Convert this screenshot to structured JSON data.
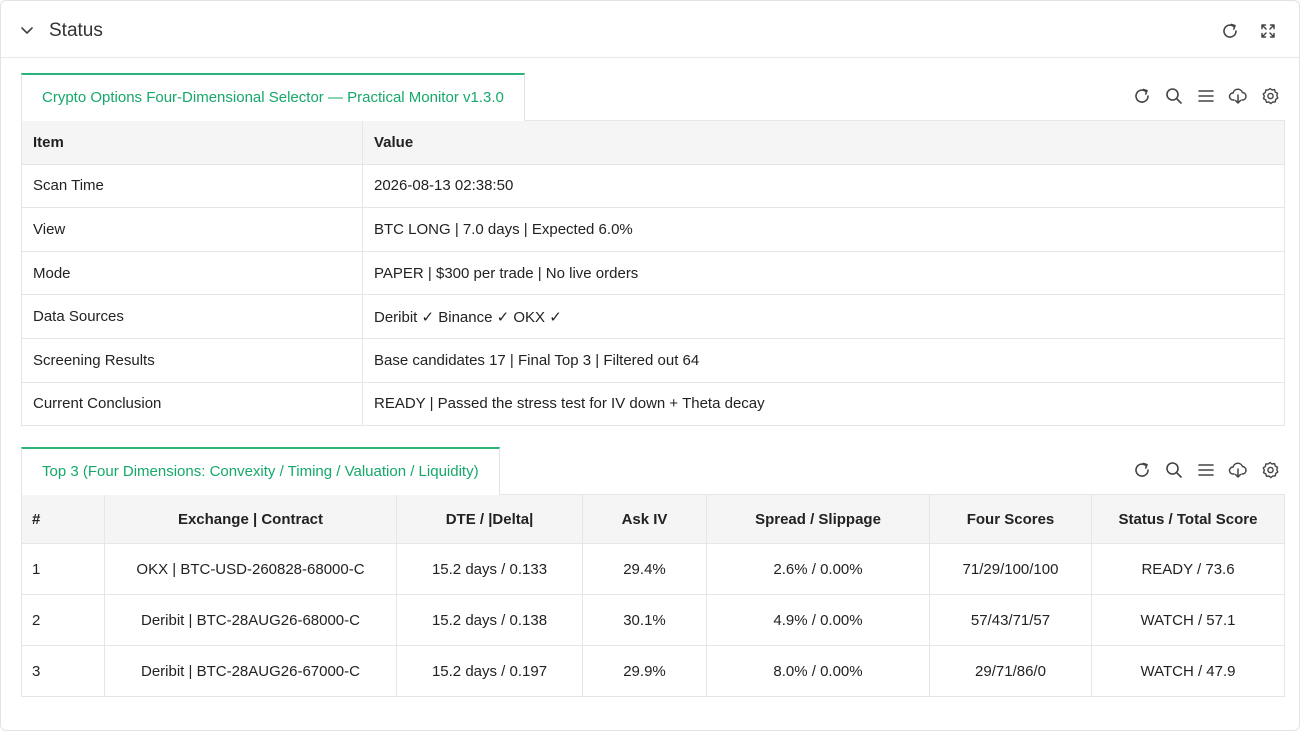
{
  "header": {
    "title": "Status",
    "icons": [
      "chevron-down-icon",
      "refresh-icon",
      "fullscreen-icon"
    ]
  },
  "panel1": {
    "tab_label": "Crypto Options Four-Dimensional Selector — Practical Monitor v1.3.0",
    "columns": [
      "Item",
      "Value"
    ],
    "rows": [
      {
        "item": "Scan Time",
        "value": "2026-08-13 02:38:50"
      },
      {
        "item": "View",
        "value": "BTC LONG  |  7.0 days  |  Expected 6.0%"
      },
      {
        "item": "Mode",
        "value": "PAPER  |  $300 per trade  |  No live orders"
      },
      {
        "item": "Data Sources",
        "value": "Deribit ✓   Binance ✓   OKX ✓"
      },
      {
        "item": "Screening Results",
        "value": "Base candidates 17  |  Final Top 3  |  Filtered out 64"
      },
      {
        "item": "Current Conclusion",
        "value": "READY  |  Passed the stress test for IV down + Theta decay"
      }
    ]
  },
  "panel2": {
    "tab_label": "Top 3  (Four Dimensions: Convexity / Timing / Valuation / Liquidity)",
    "columns": [
      "#",
      "Exchange  |  Contract",
      "DTE / |Delta|",
      "Ask IV",
      "Spread / Slippage",
      "Four Scores",
      "Status / Total Score"
    ],
    "rows": [
      {
        "rank": "1",
        "contract": "OKX  |  BTC-USD-260828-68000-C",
        "dte_delta": "15.2 days / 0.133",
        "ask_iv": "29.4%",
        "spread": "2.6% / 0.00%",
        "scores": "71/29/100/100",
        "status": "READY / 73.6"
      },
      {
        "rank": "2",
        "contract": "Deribit  |  BTC-28AUG26-68000-C",
        "dte_delta": "15.2 days / 0.138",
        "ask_iv": "30.1%",
        "spread": "4.9% / 0.00%",
        "scores": "57/43/71/57",
        "status": "WATCH  /  57.1"
      },
      {
        "rank": "3",
        "contract": "Deribit  |  BTC-28AUG26-67000-C",
        "dte_delta": "15.2 days / 0.197",
        "ask_iv": "29.9%",
        "spread": "8.0% / 0.00%",
        "scores": "29/71/86/0",
        "status": "WATCH  /  47.9"
      }
    ]
  },
  "toolbar_icons": [
    "refresh-icon",
    "search-icon",
    "list-icon",
    "cloud-download-icon",
    "settings-icon"
  ],
  "colors": {
    "accent": "#15a86a",
    "tab_border": "#2bb47a",
    "header_bg": "#f5f5f5",
    "border": "#e6e6e6"
  }
}
